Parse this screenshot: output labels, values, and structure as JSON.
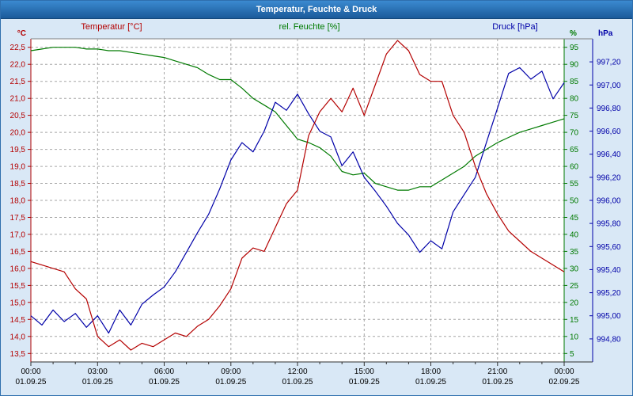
{
  "window": {
    "title": "Temperatur, Feuchte & Druck"
  },
  "axes": {
    "temp": {
      "title": "Temperatur [°C]",
      "unit": "°C",
      "color": "#b40000",
      "plot_min": 13.25,
      "plot_max": 22.75,
      "tick_max": 22.5,
      "tick_step": 0.5,
      "tick_count": 19,
      "tick_labels": [
        "22,5",
        "22,0",
        "21,5",
        "21,0",
        "20,5",
        "20,0",
        "19,5",
        "19,0",
        "18,5",
        "18,0",
        "17,5",
        "17,0",
        "16,5",
        "16,0",
        "15,5",
        "15,0",
        "14,5",
        "14,0",
        "13,5"
      ]
    },
    "hum": {
      "title": "rel. Feuchte [%]",
      "unit": "%",
      "color": "#007a00",
      "plot_min": 2.5,
      "plot_max": 97.5,
      "tick_max": 95,
      "tick_step": 5,
      "tick_count": 19,
      "tick_labels": [
        "95",
        "90",
        "85",
        "80",
        "75",
        "70",
        "65",
        "60",
        "55",
        "50",
        "45",
        "40",
        "35",
        "30",
        "25",
        "20",
        "15",
        "10",
        "5"
      ]
    },
    "pres": {
      "title": "Druck [hPa]",
      "unit": "hPa",
      "color": "#0000a8",
      "plot_min": 994.6,
      "plot_max": 997.4,
      "tick_max": 997.2,
      "tick_step": 0.2,
      "tick_count": 13,
      "tick_labels": [
        "997,20",
        "997,00",
        "996,80",
        "996,60",
        "996,40",
        "996,20",
        "996,00",
        "995,80",
        "995,60",
        "995,40",
        "995,20",
        "995,00",
        "994,80"
      ]
    },
    "time": {
      "tick_hours": [
        0,
        3,
        6,
        9,
        12,
        15,
        18,
        21,
        24
      ],
      "tick_times": [
        "00:00",
        "03:00",
        "06:00",
        "09:00",
        "12:00",
        "15:00",
        "18:00",
        "21:00",
        "00:00"
      ],
      "tick_dates": [
        "01.09.25",
        "01.09.25",
        "01.09.25",
        "01.09.25",
        "01.09.25",
        "01.09.25",
        "01.09.25",
        "01.09.25",
        "02.09.25"
      ],
      "minor_step_hours": 1
    }
  },
  "chart_data": {
    "type": "line",
    "title": "Temperatur, Feuchte & Druck",
    "x_unit": "hours",
    "x_range": [
      0,
      24
    ],
    "grid": "dashed",
    "x_hours": [
      0,
      0.5,
      1,
      1.5,
      2,
      2.5,
      3,
      3.5,
      4,
      4.5,
      5,
      5.5,
      6,
      6.5,
      7,
      7.5,
      8,
      8.5,
      9,
      9.5,
      10,
      10.5,
      11,
      11.5,
      12,
      12.5,
      13,
      13.5,
      14,
      14.5,
      15,
      15.5,
      16,
      16.5,
      17,
      17.5,
      18,
      18.5,
      19,
      19.5,
      20,
      20.5,
      21,
      21.5,
      22,
      22.5,
      23,
      23.5,
      24
    ],
    "series": [
      {
        "name": "Temperatur [°C]",
        "axis": "temp",
        "color": "#b40000",
        "values": [
          16.2,
          16.1,
          16.0,
          15.9,
          15.4,
          15.1,
          14.0,
          13.7,
          13.9,
          13.6,
          13.8,
          13.7,
          13.9,
          14.1,
          14.0,
          14.3,
          14.5,
          14.9,
          15.4,
          16.3,
          16.6,
          16.5,
          17.2,
          17.9,
          18.3,
          19.9,
          20.6,
          21.0,
          20.6,
          21.3,
          20.5,
          21.4,
          22.3,
          22.7,
          22.4,
          21.7,
          21.5,
          21.5,
          20.5,
          20.0,
          19.0,
          18.2,
          17.6,
          17.1,
          16.8,
          16.5,
          16.3,
          16.1,
          15.9
        ]
      },
      {
        "name": "rel. Feuchte [%]",
        "axis": "hum",
        "color": "#007a00",
        "values": [
          94,
          94.5,
          95,
          95,
          95,
          94.5,
          94.5,
          94,
          94,
          93.5,
          93,
          92.5,
          92,
          91,
          90,
          89,
          87,
          85.5,
          85.5,
          83,
          80,
          78,
          76,
          72,
          68,
          67,
          65.5,
          63,
          58.5,
          57.5,
          58,
          55,
          54,
          53,
          53,
          54,
          54,
          56,
          58,
          60,
          63,
          65,
          67,
          68.5,
          70,
          71,
          72,
          73,
          74
        ]
      },
      {
        "name": "Druck [hPa]",
        "axis": "pres",
        "color": "#0000a8",
        "values": [
          995.0,
          994.92,
          995.05,
          994.95,
          995.02,
          994.9,
          995.0,
          994.85,
          995.05,
          994.92,
          995.1,
          995.18,
          995.25,
          995.38,
          995.55,
          995.72,
          995.88,
          996.1,
          996.35,
          996.5,
          996.42,
          996.6,
          996.85,
          996.78,
          996.92,
          996.75,
          996.6,
          996.55,
          996.3,
          996.42,
          996.2,
          996.08,
          995.95,
          995.8,
          995.7,
          995.55,
          995.65,
          995.58,
          995.9,
          996.05,
          996.2,
          996.5,
          996.8,
          997.1,
          997.15,
          997.05,
          997.12,
          996.88,
          997.02
        ]
      }
    ]
  }
}
